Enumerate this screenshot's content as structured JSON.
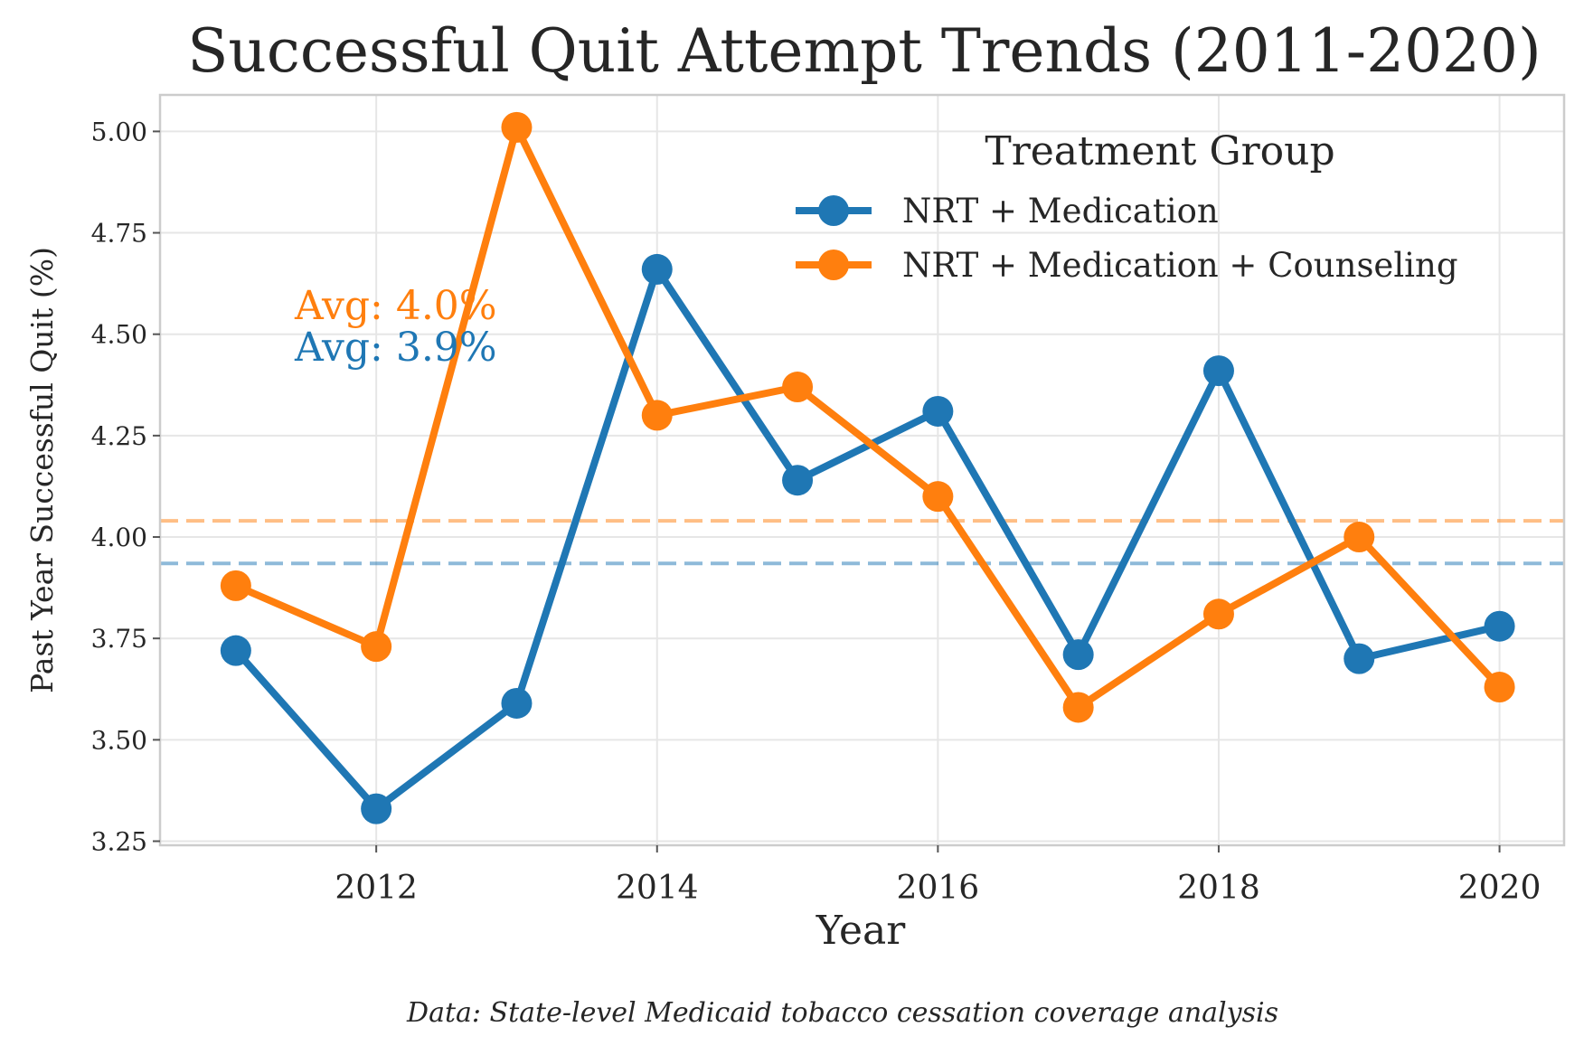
{
  "chart_data": {
    "type": "line",
    "title": "Successful Quit Attempt Trends (2011-2020)",
    "xlabel": "Year",
    "ylabel": "Past Year Successful Quit (%)",
    "x": [
      2011,
      2012,
      2013,
      2014,
      2015,
      2016,
      2017,
      2018,
      2019,
      2020
    ],
    "xticks": [
      "2012",
      "2014",
      "2016",
      "2018",
      "2020"
    ],
    "xtick_values": [
      2012,
      2014,
      2016,
      2018,
      2020
    ],
    "yticks": [
      "3.25",
      "3.50",
      "3.75",
      "4.00",
      "4.25",
      "4.50",
      "4.75",
      "5.00"
    ],
    "ytick_values": [
      3.25,
      3.5,
      3.75,
      4.0,
      4.25,
      4.5,
      4.75,
      5.0
    ],
    "xlim": [
      2010.46,
      2020.46
    ],
    "ylim": [
      3.24,
      5.09
    ],
    "grid": true,
    "legend": {
      "title": "Treatment Group",
      "placement": "top-right"
    },
    "series": [
      {
        "name": "NRT + Medication",
        "color": "#1f77b4",
        "values": [
          3.72,
          3.33,
          3.59,
          4.66,
          4.14,
          4.31,
          3.71,
          4.41,
          3.7,
          3.78
        ],
        "average": 3.935,
        "avg_label": "Avg: 3.9%"
      },
      {
        "name": "NRT + Medication + Counseling",
        "color": "#ff7f0e",
        "values": [
          3.88,
          3.73,
          5.01,
          4.3,
          4.37,
          4.1,
          3.58,
          3.81,
          4.0,
          3.63
        ],
        "average": 4.04,
        "avg_label": "Avg: 4.0%"
      }
    ],
    "footnote": "Data: State-level Medicaid tobacco cessation coverage analysis"
  }
}
